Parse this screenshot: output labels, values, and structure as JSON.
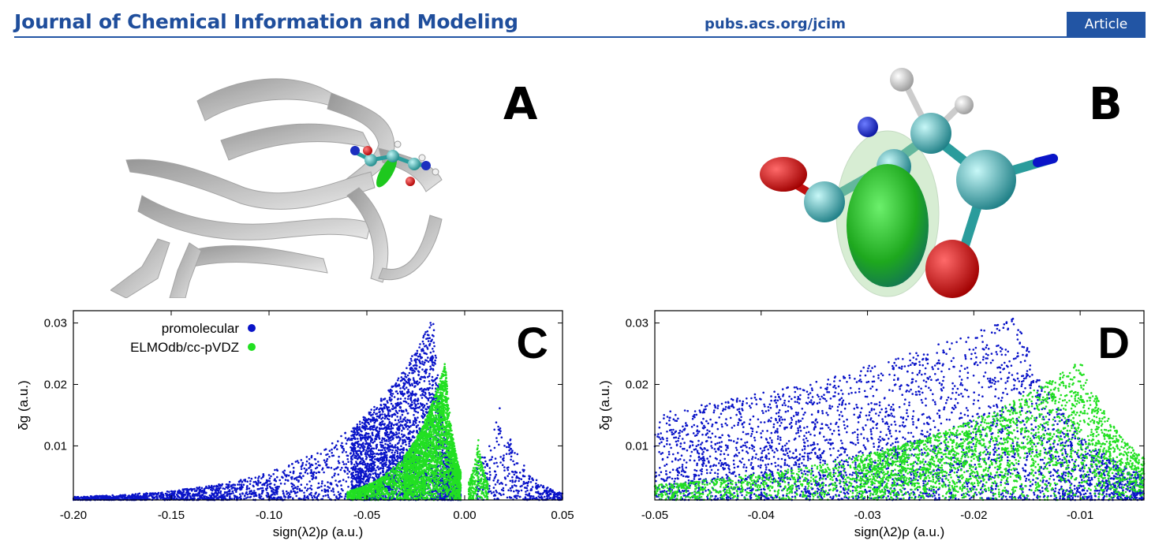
{
  "header": {
    "journal_title": "Journal of Chemical Information and Modeling",
    "url": "pubs.acs.org/jcim",
    "badge": "Article"
  },
  "panels": {
    "a": {
      "letter": "A"
    },
    "b": {
      "letter": "B"
    },
    "c": {
      "letter": "C"
    },
    "d": {
      "letter": "D"
    }
  },
  "colors": {
    "journal_blue": "#1f4e9c",
    "promolecular": "#0a14c8",
    "elmodb": "#22e022"
  },
  "chart_data": [
    {
      "type": "scatter",
      "panel": "C",
      "xlabel": "sign(λ2)ρ (a.u.)",
      "ylabel": "δg (a.u.)",
      "xlim": [
        -0.2,
        0.05
      ],
      "ylim": [
        0.0012,
        0.032
      ],
      "x_ticks": [
        "-0.20",
        "-0.15",
        "-0.10",
        "-0.05",
        "0.00",
        "0.05"
      ],
      "x_tick_values": [
        -0.2,
        -0.15,
        -0.1,
        -0.05,
        0.0,
        0.05
      ],
      "y_ticks": [
        "0.01",
        "0.02",
        "0.03"
      ],
      "y_tick_values": [
        0.01,
        0.02,
        0.03
      ],
      "legend": "top-left",
      "series": [
        {
          "name": "promolecular",
          "color": "#0a14c8",
          "profile": {
            "neg_peak_x": -0.016,
            "neg_peak_y": 0.031,
            "pos_peak_x": 0.018,
            "pos_peak_y": 0.017,
            "x_min": -0.2,
            "x_max": 0.05
          }
        },
        {
          "name": "ELMOdb/cc-pVDZ",
          "color": "#22e022",
          "profile": {
            "neg_peak_x": -0.01,
            "neg_peak_y": 0.024,
            "pos_peak_x": 0.007,
            "pos_peak_y": 0.011,
            "x_min": -0.06,
            "x_max": 0.012
          }
        }
      ]
    },
    {
      "type": "scatter",
      "panel": "D",
      "xlabel": "sign(λ2)ρ (a.u.)",
      "ylabel": "δg (a.u.)",
      "xlim": [
        -0.05,
        -0.004
      ],
      "ylim": [
        0.0012,
        0.032
      ],
      "x_ticks": [
        "-0.05",
        "-0.04",
        "-0.03",
        "-0.02",
        "-0.01"
      ],
      "x_tick_values": [
        -0.05,
        -0.04,
        -0.03,
        -0.02,
        -0.01
      ],
      "y_ticks": [
        "0.01",
        "0.02",
        "0.03"
      ],
      "y_tick_values": [
        0.01,
        0.02,
        0.03
      ],
      "series": [
        {
          "name": "promolecular",
          "color": "#0a14c8",
          "profile": {
            "neg_peak_x": -0.016,
            "neg_peak_y": 0.031,
            "x_min": -0.05,
            "x_max": -0.004
          }
        },
        {
          "name": "ELMOdb/cc-pVDZ",
          "color": "#22e022",
          "profile": {
            "neg_peak_x": -0.01,
            "neg_peak_y": 0.024,
            "x_min": -0.05,
            "x_max": -0.004
          }
        }
      ]
    }
  ]
}
